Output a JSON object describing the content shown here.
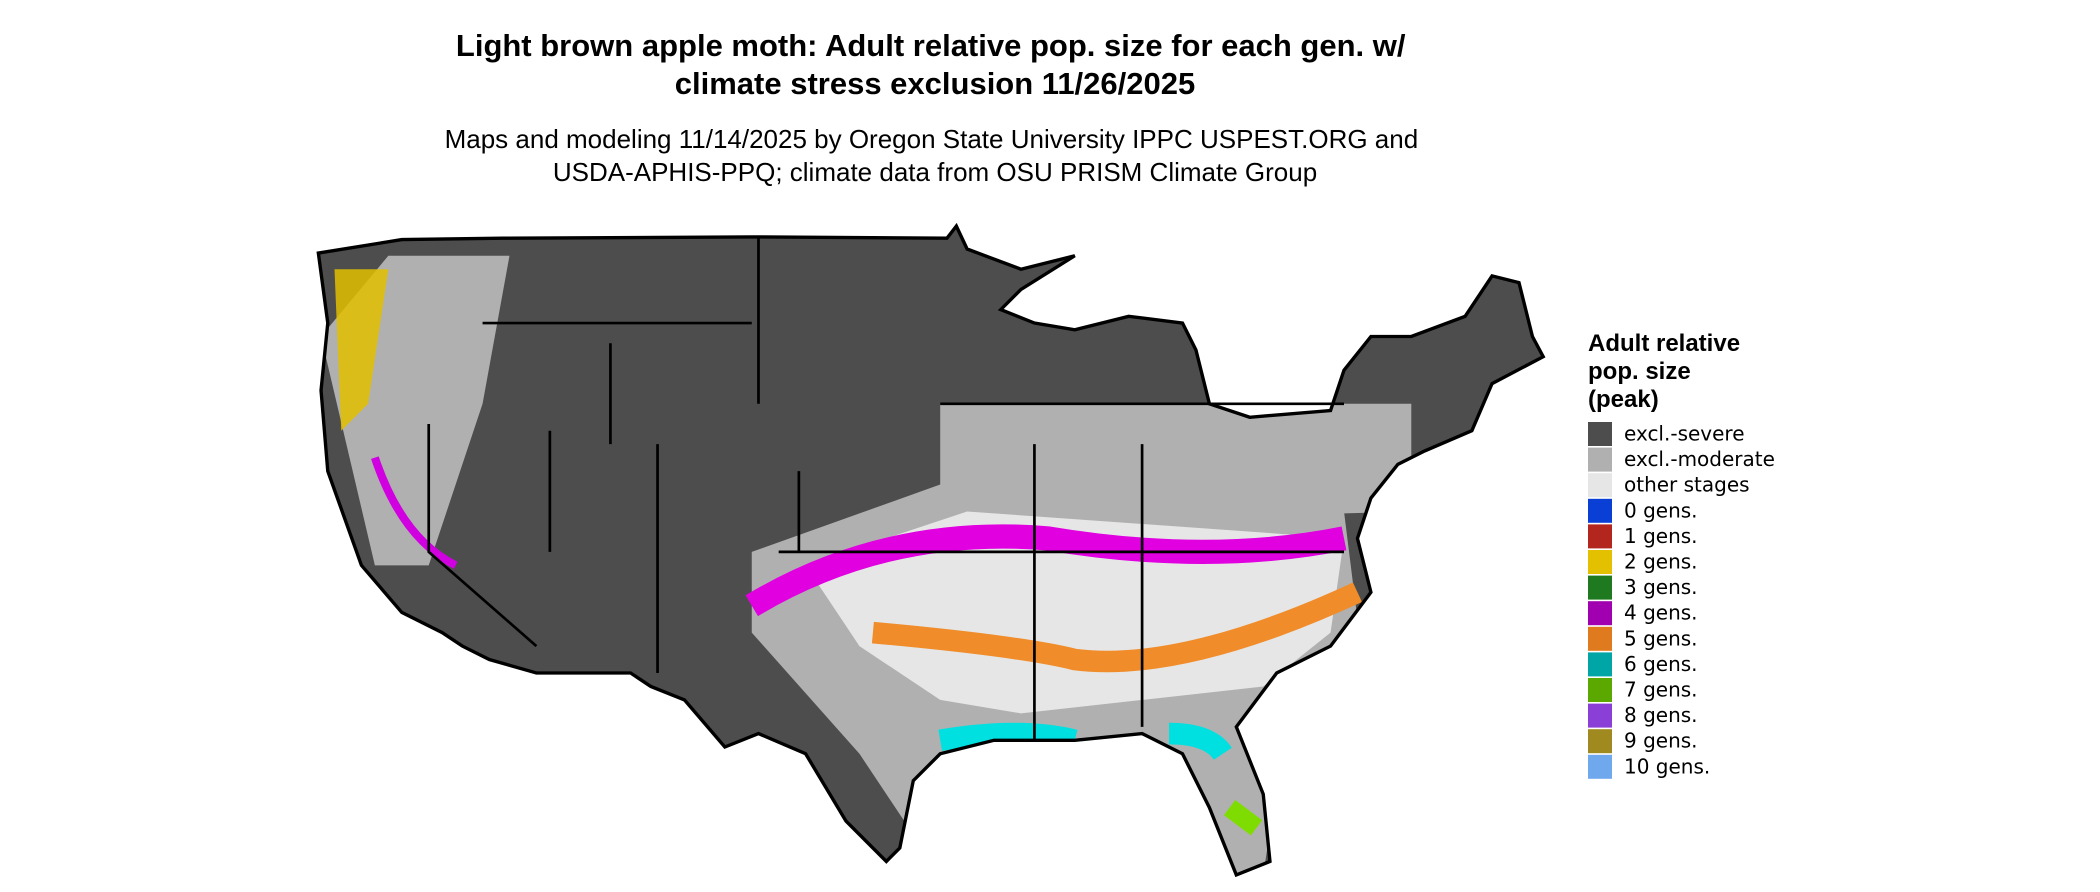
{
  "title": "Light brown apple moth: Adult relative pop. size for each gen. w/ climate stress exclusion 11/26/2025",
  "subtitle": [
    "Maps and modeling 11/14/2025 by Oregon State University IPPC USPEST.ORG and",
    "USDA-APHIS-PPQ; climate data from OSU PRISM Climate Group"
  ],
  "legend": {
    "title": [
      "Adult relative",
      "pop. size",
      "(peak)"
    ],
    "items": [
      {
        "label": "excl.-severe",
        "color": "#4d4d4d"
      },
      {
        "label": "excl.-moderate",
        "color": "#b0b0b0"
      },
      {
        "label": "other stages",
        "color": "#e6e6e6"
      },
      {
        "label": "0 gens.",
        "color": "#0a3fd6"
      },
      {
        "label": "1 gens.",
        "color": "#b3261e"
      },
      {
        "label": "2 gens.",
        "color": "#e3c000"
      },
      {
        "label": "3 gens.",
        "color": "#1f7a1f"
      },
      {
        "label": "4 gens.",
        "color": "#a000b0"
      },
      {
        "label": "5 gens.",
        "color": "#e07a1f"
      },
      {
        "label": "6 gens.",
        "color": "#00a6a6"
      },
      {
        "label": "7 gens.",
        "color": "#5aa800"
      },
      {
        "label": "8 gens.",
        "color": "#8a3fd6"
      },
      {
        "label": "9 gens.",
        "color": "#a08a20"
      },
      {
        "label": "10 gens.",
        "color": "#6fa8ec"
      }
    ]
  }
}
